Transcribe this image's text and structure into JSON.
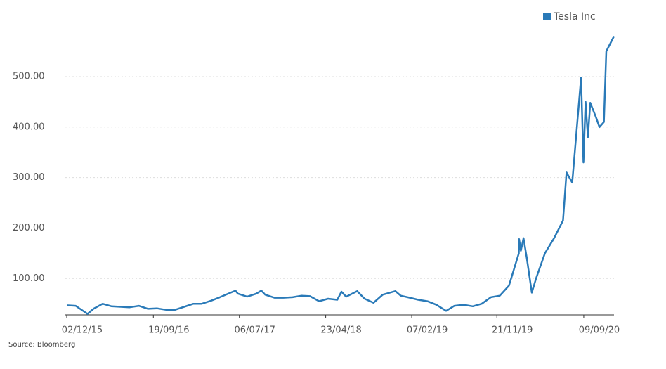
{
  "chart_data": {
    "type": "line",
    "x": [
      "02/12/15",
      "01/01/16",
      "10/02/16",
      "01/03/16",
      "01/04/16",
      "01/05/16",
      "01/06/16",
      "01/07/16",
      "01/08/16",
      "01/09/16",
      "01/10/16",
      "01/11/16",
      "01/12/16",
      "01/01/17",
      "01/02/17",
      "01/03/17",
      "01/04/17",
      "01/05/17",
      "23/06/17",
      "01/07/17",
      "01/08/17",
      "01/09/17",
      "18/09/17",
      "01/10/17",
      "01/11/17",
      "01/12/17",
      "01/01/18",
      "01/02/18",
      "01/03/18",
      "01/04/18",
      "01/05/18",
      "01/06/18",
      "15/06/18",
      "01/07/18",
      "07/08/18",
      "01/09/18",
      "01/10/18",
      "01/11/18",
      "14/12/18",
      "01/01/19",
      "01/02/19",
      "01/03/19",
      "01/04/19",
      "01/05/19",
      "03/06/19",
      "01/07/19",
      "01/08/19",
      "01/09/19",
      "01/10/19",
      "01/11/19",
      "01/12/19",
      "01/01/20",
      "03/02/20",
      "04/02/20",
      "10/02/20",
      "19/02/20",
      "01/03/20",
      "18/03/20",
      "01/04/20",
      "01/05/20",
      "01/06/20",
      "01/07/20",
      "13/07/20",
      "01/08/20",
      "31/08/20",
      "08/09/20",
      "15/09/20",
      "23/09/20",
      "01/10/20",
      "20/10/20",
      "01/11/20",
      "16/11/20",
      "24/11/20",
      "20/12/20"
    ],
    "series": [
      {
        "name": "Tesla Inc",
        "color": "#2a7ab8",
        "values": [
          47,
          46,
          30,
          40,
          50,
          45,
          44,
          43,
          46,
          40,
          41,
          38,
          38,
          44,
          50,
          50,
          56,
          63,
          76,
          70,
          64,
          70,
          76,
          68,
          62,
          62,
          63,
          66,
          65,
          55,
          60,
          58,
          74,
          64,
          75,
          60,
          52,
          68,
          75,
          66,
          62,
          58,
          55,
          48,
          36,
          46,
          48,
          45,
          50,
          63,
          66,
          86,
          150,
          178,
          155,
          180,
          140,
          72,
          100,
          150,
          180,
          215,
          310,
          290,
          498,
          330,
          450,
          380,
          448,
          420,
          400,
          410,
          550,
          580
        ]
      }
    ],
    "xlim": [
      "02/12/15",
      "20/12/20"
    ],
    "xticks": [
      "02/12/15",
      "19/09/16",
      "06/07/17",
      "23/04/18",
      "07/02/19",
      "21/11/19",
      "09/09/20"
    ],
    "ylim": [
      28,
      596
    ],
    "yticks": [
      {
        "value": 100,
        "label": "100.00"
      },
      {
        "value": 200,
        "label": "200.00"
      },
      {
        "value": 300,
        "label": "300.00"
      },
      {
        "value": 400,
        "label": "400.00"
      },
      {
        "value": 500,
        "label": "500.00"
      }
    ],
    "grid": true,
    "legend": "top-right",
    "source": "Source: Bloomberg"
  }
}
